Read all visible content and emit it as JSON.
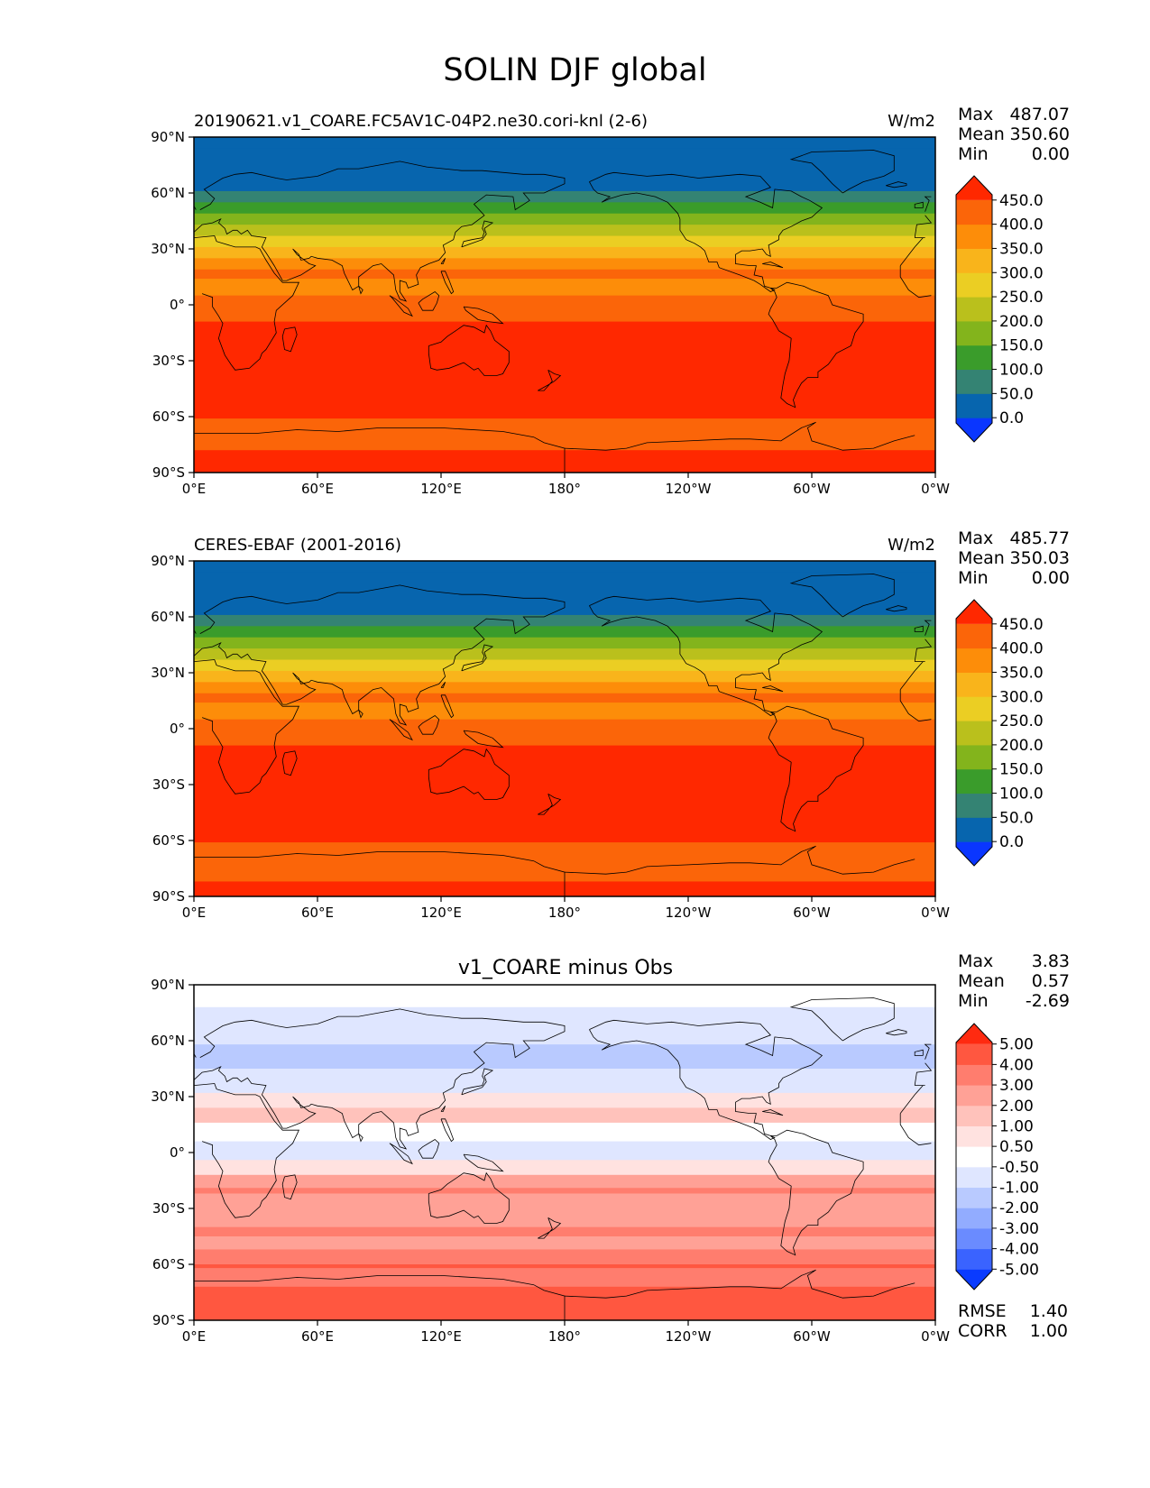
{
  "figure": {
    "title": "SOLIN DJF global"
  },
  "panels": [
    {
      "left_title": "20190621.v1_COARE.FC5AV1C-04P2.ne30.cori-knl (2-6)",
      "center_title": "",
      "units": "W/m2",
      "stats": [
        {
          "label": "Max",
          "value": "487.07"
        },
        {
          "label": "Mean",
          "value": "350.60"
        },
        {
          "label": "Min",
          "value": "0.00"
        }
      ],
      "colorbar": {
        "tick_labels": [
          "450.0",
          "400.0",
          "350.0",
          "300.0",
          "250.0",
          "200.0",
          "150.0",
          "100.0",
          "50.0",
          "0.0"
        ],
        "colors": [
          "#0a36ff",
          "#0765ae",
          "#348373",
          "#3a9c2b",
          "#83b41c",
          "#bac01c",
          "#ebce23",
          "#f9b41b",
          "#fd8d09",
          "#fb6509",
          "#ff2800"
        ]
      }
    },
    {
      "left_title": "CERES-EBAF (2001-2016)",
      "center_title": "",
      "units": "W/m2",
      "stats": [
        {
          "label": "Max",
          "value": "485.77"
        },
        {
          "label": "Mean",
          "value": "350.03"
        },
        {
          "label": "Min",
          "value": "0.00"
        }
      ],
      "colorbar": {
        "tick_labels": [
          "450.0",
          "400.0",
          "350.0",
          "300.0",
          "250.0",
          "200.0",
          "150.0",
          "100.0",
          "50.0",
          "0.0"
        ],
        "colors": [
          "#0a36ff",
          "#0765ae",
          "#348373",
          "#3a9c2b",
          "#83b41c",
          "#bac01c",
          "#ebce23",
          "#f9b41b",
          "#fd8d09",
          "#fb6509",
          "#ff2800"
        ]
      }
    },
    {
      "left_title": "",
      "center_title": "v1_COARE minus Obs",
      "units": "",
      "stats": [
        {
          "label": "Max",
          "value": "3.83"
        },
        {
          "label": "Mean",
          "value": "0.57"
        },
        {
          "label": "Min",
          "value": "-2.69"
        }
      ],
      "colorbar": {
        "tick_labels": [
          "5.00",
          "4.00",
          "3.00",
          "2.00",
          "1.00",
          "0.50",
          "-0.50",
          "-1.00",
          "-2.00",
          "-3.00",
          "-4.00",
          "-5.00"
        ],
        "colors": [
          "#0a3bff",
          "#3a63ff",
          "#6a8bff",
          "#92acff",
          "#b9caff",
          "#dfe6ff",
          "#ffffff",
          "#ffe2e0",
          "#ffc2bb",
          "#ffa196",
          "#ff7d6e",
          "#ff5740",
          "#ff2a10"
        ]
      }
    }
  ],
  "axes": {
    "x_ticks": [
      "0°E",
      "60°E",
      "120°E",
      "180°",
      "120°W",
      "60°W",
      "0°W"
    ],
    "y_ticks": [
      "90°N",
      "60°N",
      "30°N",
      "0°",
      "30°S",
      "60°S",
      "90°S"
    ]
  },
  "metrics": [
    {
      "label": "RMSE",
      "value": "1.40"
    },
    {
      "label": "CORR",
      "value": "1.00"
    }
  ],
  "chart_data": [
    {
      "type": "heatmap",
      "title": "20190621.v1_COARE.FC5AV1C-04P2.ne30.cori-knl (2-6)",
      "units": "W/m2",
      "lat_band_edges": [
        90,
        84,
        61,
        55,
        49,
        43,
        37,
        31,
        25,
        19,
        14,
        5,
        -9,
        -61,
        -78,
        -90
      ],
      "band_values": [
        0,
        25,
        75,
        125,
        175,
        225,
        275,
        325,
        375,
        425,
        375,
        425,
        475,
        425,
        475
      ],
      "levels": [
        0,
        50,
        100,
        150,
        200,
        250,
        300,
        350,
        400,
        450
      ],
      "xlim": [
        0,
        360
      ],
      "ylim": [
        -90,
        90
      ],
      "max": 487.07,
      "mean": 350.6,
      "min": 0.0
    },
    {
      "type": "heatmap",
      "title": "CERES-EBAF (2001-2016)",
      "units": "W/m2",
      "lat_band_edges": [
        90,
        84,
        61,
        55,
        49,
        43,
        37,
        31,
        25,
        19,
        14,
        5,
        -9,
        -61,
        -82,
        -90
      ],
      "band_values": [
        0,
        25,
        75,
        125,
        175,
        225,
        275,
        325,
        375,
        425,
        375,
        425,
        475,
        425,
        475
      ],
      "levels": [
        0,
        50,
        100,
        150,
        200,
        250,
        300,
        350,
        400,
        450
      ],
      "xlim": [
        0,
        360
      ],
      "ylim": [
        -90,
        90
      ],
      "max": 485.77,
      "mean": 350.03,
      "min": 0.0
    },
    {
      "type": "heatmap",
      "title": "v1_COARE minus Obs",
      "lat_band_edges": [
        90,
        78,
        72,
        58,
        45,
        32,
        24,
        16,
        6,
        0,
        -4,
        -12,
        -19,
        -22,
        -40,
        -45,
        -52,
        -60,
        -62,
        -72,
        -90
      ],
      "band_values": [
        0,
        -0.75,
        -0.75,
        -1.5,
        -0.75,
        0.75,
        1.5,
        0,
        -0.75,
        -0.75,
        0.75,
        2.5,
        3.5,
        2.5,
        3.5,
        2.5,
        3.5,
        4.5,
        3.5,
        4.5
      ],
      "levels": [
        -5,
        -4,
        -3,
        -2,
        -1,
        -0.5,
        0.5,
        1,
        2,
        3,
        4,
        5
      ],
      "xlim": [
        0,
        360
      ],
      "ylim": [
        -90,
        90
      ],
      "max": 3.83,
      "mean": 0.57,
      "min": -2.69,
      "rmse": 1.4,
      "corr": 1.0
    }
  ]
}
